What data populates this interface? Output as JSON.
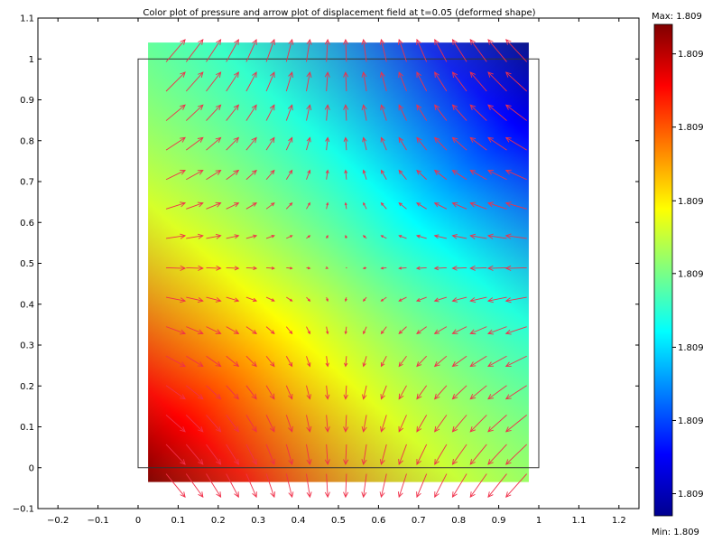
{
  "chart_data": {
    "type": "heatmap",
    "title": "Color plot of pressure  and arrow plot of displacement field at t=0.05 (deformed shape)",
    "xlabel": "",
    "ylabel": "",
    "xlim": [
      -0.25,
      1.25
    ],
    "ylim": [
      -0.1,
      1.1
    ],
    "x_ticks": [
      "−0.2",
      "−0.1",
      "0",
      "0.1",
      "0.2",
      "0.3",
      "0.4",
      "0.5",
      "0.6",
      "0.7",
      "0.8",
      "0.9",
      "1",
      "1.1",
      "1.2"
    ],
    "x_tick_values": [
      -0.2,
      -0.1,
      0,
      0.1,
      0.2,
      0.3,
      0.4,
      0.5,
      0.6,
      0.7,
      0.8,
      0.9,
      1,
      1.1,
      1.2
    ],
    "y_ticks": [
      "−0.1",
      "0",
      "0.1",
      "0.2",
      "0.3",
      "0.4",
      "0.5",
      "0.6",
      "0.7",
      "0.8",
      "0.9",
      "1",
      "1.1"
    ],
    "y_tick_values": [
      -0.1,
      0,
      0.1,
      0.2,
      0.3,
      0.4,
      0.5,
      0.6,
      0.7,
      0.8,
      0.9,
      1,
      1.1
    ],
    "original_domain": {
      "x": [
        0,
        1
      ],
      "y": [
        0,
        1
      ]
    },
    "deformed_domain": {
      "x": [
        0.025,
        0.975
      ],
      "y": [
        -0.035,
        1.04
      ]
    },
    "arrow_grid": {
      "x_start": 0.07,
      "x_step": 0.05,
      "x_count": 19,
      "y_start": -0.015,
      "y_step": 0.072,
      "y_count": 15
    },
    "arrow_color": "#f0304a",
    "colormap": "jet",
    "gridlines": false,
    "colorbar": {
      "max_label": "Max: 1.809",
      "min_label": "Min: 1.809",
      "tick_labels": [
        "1.809",
        "1.809",
        "1.809",
        "1.809",
        "1.809",
        "1.809",
        "1.809"
      ],
      "tick_fractions": [
        0.045,
        0.194,
        0.343,
        0.493,
        0.641,
        0.791,
        0.94
      ]
    }
  }
}
